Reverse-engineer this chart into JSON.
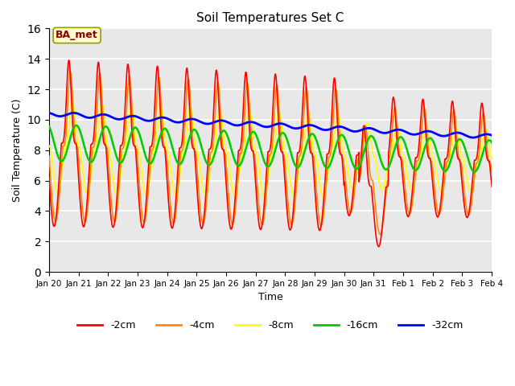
{
  "title": "Soil Temperatures Set C",
  "xlabel": "Time",
  "ylabel": "Soil Temperature (C)",
  "ylim": [
    0,
    16
  ],
  "yticks": [
    0,
    2,
    4,
    6,
    8,
    10,
    12,
    14,
    16
  ],
  "background_color": "#e8e8e8",
  "annotation_text": "BA_met",
  "annotation_color": "#8b0000",
  "annotation_bg": "#ffffcc",
  "series_colors": {
    "-2cm": "#ff0000",
    "-4cm": "#ff8c00",
    "-8cm": "#ffff00",
    "-16cm": "#00cc00",
    "-32cm": "#0000ff"
  },
  "line_widths": {
    "-2cm": 1.2,
    "-4cm": 1.2,
    "-8cm": 1.2,
    "-16cm": 1.8,
    "-32cm": 2.0
  },
  "x_tick_labels": [
    "Jan 20",
    "Jan 21",
    "Jan 22",
    "Jan 23",
    "Jan 24",
    "Jan 25",
    "Jan 26",
    "Jan 27",
    "Jan 28",
    "Jan 29",
    "Jan 30",
    "Jan 31",
    "Feb 1",
    "Feb 2",
    "Feb 3",
    "Feb 4"
  ],
  "n_days": 16,
  "points_per_day": 144
}
